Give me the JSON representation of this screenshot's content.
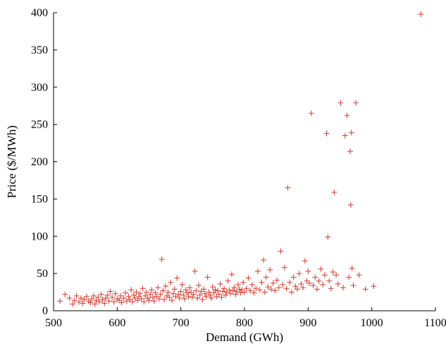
{
  "chart_data": {
    "type": "scatter",
    "title": "",
    "xlabel": "Demand (GWh)",
    "ylabel": "Price ($/MWh)",
    "xlim": [
      500,
      1100
    ],
    "ylim": [
      0,
      400
    ],
    "xticks": [
      500,
      600,
      700,
      800,
      900,
      1000,
      1100
    ],
    "yticks": [
      0,
      50,
      100,
      150,
      200,
      250,
      300,
      350,
      400
    ],
    "grid": false,
    "legend": "none",
    "marker": "plus",
    "color": "#d9372b",
    "points": [
      [
        510,
        13
      ],
      [
        518,
        22
      ],
      [
        525,
        17
      ],
      [
        530,
        9
      ],
      [
        533,
        14
      ],
      [
        536,
        20
      ],
      [
        540,
        12
      ],
      [
        543,
        17
      ],
      [
        546,
        10
      ],
      [
        548,
        15
      ],
      [
        552,
        19
      ],
      [
        555,
        13
      ],
      [
        558,
        11
      ],
      [
        560,
        16
      ],
      [
        563,
        20
      ],
      [
        565,
        9
      ],
      [
        567,
        14
      ],
      [
        570,
        18
      ],
      [
        572,
        12
      ],
      [
        575,
        22
      ],
      [
        577,
        15
      ],
      [
        580,
        10
      ],
      [
        582,
        17
      ],
      [
        585,
        21
      ],
      [
        587,
        13
      ],
      [
        589,
        26
      ],
      [
        592,
        18
      ],
      [
        595,
        12
      ],
      [
        597,
        23
      ],
      [
        600,
        16
      ],
      [
        603,
        14
      ],
      [
        605,
        20
      ],
      [
        607,
        11
      ],
      [
        610,
        17
      ],
      [
        613,
        24
      ],
      [
        615,
        13
      ],
      [
        618,
        19
      ],
      [
        620,
        15
      ],
      [
        622,
        28
      ],
      [
        624,
        12
      ],
      [
        626,
        21
      ],
      [
        628,
        17
      ],
      [
        630,
        25
      ],
      [
        632,
        14
      ],
      [
        634,
        19
      ],
      [
        636,
        23
      ],
      [
        638,
        16
      ],
      [
        640,
        30
      ],
      [
        642,
        12
      ],
      [
        644,
        20
      ],
      [
        646,
        25
      ],
      [
        648,
        17
      ],
      [
        650,
        14
      ],
      [
        652,
        22
      ],
      [
        654,
        28
      ],
      [
        656,
        18
      ],
      [
        658,
        13
      ],
      [
        660,
        24
      ],
      [
        662,
        19
      ],
      [
        664,
        31
      ],
      [
        666,
        16
      ],
      [
        668,
        22
      ],
      [
        670,
        69
      ],
      [
        672,
        27
      ],
      [
        674,
        15
      ],
      [
        676,
        33
      ],
      [
        678,
        20
      ],
      [
        680,
        25
      ],
      [
        682,
        18
      ],
      [
        684,
        38
      ],
      [
        686,
        14
      ],
      [
        688,
        23
      ],
      [
        690,
        29
      ],
      [
        692,
        19
      ],
      [
        694,
        44
      ],
      [
        696,
        22
      ],
      [
        698,
        17
      ],
      [
        700,
        26
      ],
      [
        702,
        35
      ],
      [
        704,
        21
      ],
      [
        706,
        16
      ],
      [
        708,
        28
      ],
      [
        710,
        24
      ],
      [
        712,
        19
      ],
      [
        714,
        31
      ],
      [
        716,
        25
      ],
      [
        718,
        18
      ],
      [
        720,
        22
      ],
      [
        722,
        53
      ],
      [
        724,
        27
      ],
      [
        726,
        17
      ],
      [
        728,
        34
      ],
      [
        730,
        21
      ],
      [
        732,
        26
      ],
      [
        734,
        15
      ],
      [
        736,
        29
      ],
      [
        738,
        23
      ],
      [
        740,
        19
      ],
      [
        742,
        45
      ],
      [
        744,
        25
      ],
      [
        746,
        21
      ],
      [
        748,
        17
      ],
      [
        750,
        32
      ],
      [
        752,
        24
      ],
      [
        754,
        28
      ],
      [
        756,
        19
      ],
      [
        758,
        27
      ],
      [
        760,
        22
      ],
      [
        762,
        36
      ],
      [
        764,
        18
      ],
      [
        766,
        26
      ],
      [
        768,
        30
      ],
      [
        770,
        21
      ],
      [
        772,
        25
      ],
      [
        774,
        40
      ],
      [
        776,
        28
      ],
      [
        778,
        23
      ],
      [
        780,
        49
      ],
      [
        782,
        27
      ],
      [
        784,
        31
      ],
      [
        786,
        22
      ],
      [
        788,
        26
      ],
      [
        790,
        35
      ],
      [
        792,
        29
      ],
      [
        794,
        24
      ],
      [
        796,
        28
      ],
      [
        798,
        38
      ],
      [
        800,
        25
      ],
      [
        803,
        30
      ],
      [
        806,
        44
      ],
      [
        809,
        27
      ],
      [
        812,
        35
      ],
      [
        815,
        24
      ],
      [
        818,
        30
      ],
      [
        821,
        53
      ],
      [
        824,
        28
      ],
      [
        827,
        38
      ],
      [
        830,
        68
      ],
      [
        832,
        25
      ],
      [
        834,
        45
      ],
      [
        837,
        32
      ],
      [
        840,
        55
      ],
      [
        842,
        29
      ],
      [
        845,
        37
      ],
      [
        848,
        27
      ],
      [
        851,
        41
      ],
      [
        854,
        31
      ],
      [
        857,
        80
      ],
      [
        860,
        35
      ],
      [
        863,
        58
      ],
      [
        866,
        30
      ],
      [
        868,
        165
      ],
      [
        871,
        38
      ],
      [
        874,
        25
      ],
      [
        877,
        45
      ],
      [
        880,
        33
      ],
      [
        883,
        29
      ],
      [
        886,
        50
      ],
      [
        889,
        36
      ],
      [
        892,
        31
      ],
      [
        895,
        67
      ],
      [
        898,
        40
      ],
      [
        900,
        53
      ],
      [
        902,
        37
      ],
      [
        905,
        265
      ],
      [
        908,
        34
      ],
      [
        911,
        45
      ],
      [
        914,
        29
      ],
      [
        917,
        40
      ],
      [
        920,
        56
      ],
      [
        923,
        35
      ],
      [
        926,
        48
      ],
      [
        929,
        238
      ],
      [
        931,
        99
      ],
      [
        933,
        40
      ],
      [
        936,
        30
      ],
      [
        939,
        52
      ],
      [
        941,
        159
      ],
      [
        944,
        48
      ],
      [
        947,
        36
      ],
      [
        951,
        279
      ],
      [
        955,
        31
      ],
      [
        958,
        235
      ],
      [
        961,
        262
      ],
      [
        964,
        45
      ],
      [
        966,
        214
      ],
      [
        967,
        142
      ],
      [
        968,
        239
      ],
      [
        969,
        57
      ],
      [
        971,
        34
      ],
      [
        975,
        279
      ],
      [
        980,
        48
      ],
      [
        990,
        29
      ],
      [
        1003,
        33
      ],
      [
        1077,
        398
      ]
    ]
  }
}
